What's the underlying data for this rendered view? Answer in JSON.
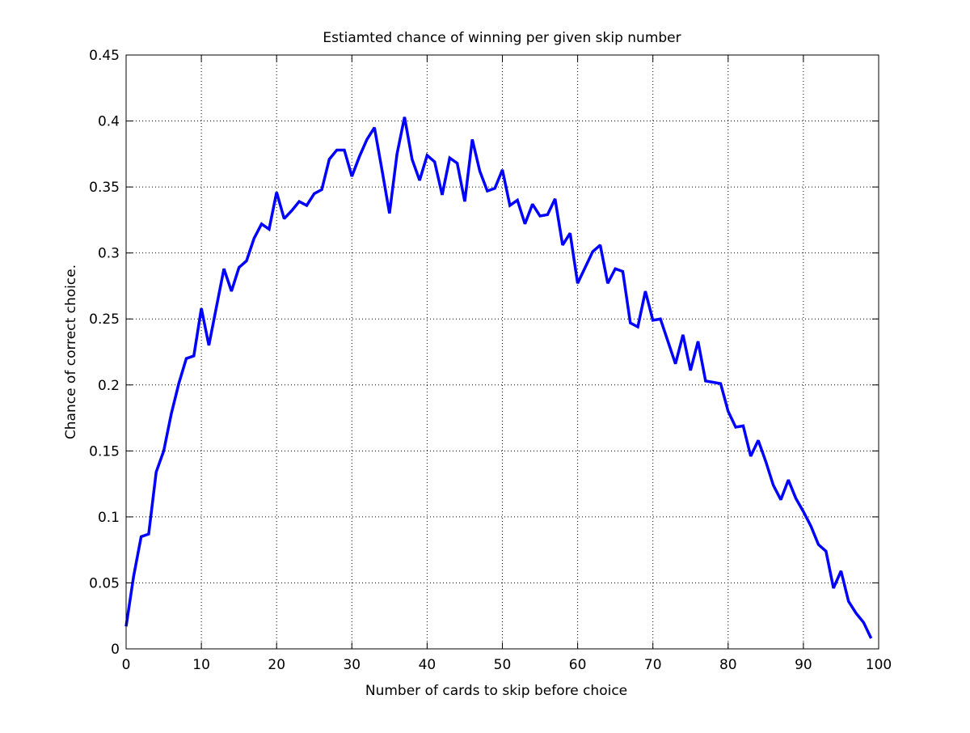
{
  "chart_data": {
    "type": "line",
    "title": "Estiamted chance of winning per given skip number",
    "xlabel": "Number of cards to skip before choice",
    "ylabel": "Chance of correct choice.",
    "xlim": [
      0,
      100
    ],
    "ylim": [
      0,
      0.45
    ],
    "xticks": [
      0,
      10,
      20,
      30,
      40,
      50,
      60,
      70,
      80,
      90,
      100
    ],
    "xtick_labels": [
      "0",
      "10",
      "20",
      "30",
      "40",
      "50",
      "60",
      "70",
      "80",
      "90",
      "100"
    ],
    "yticks": [
      0,
      0.05,
      0.1,
      0.15,
      0.2,
      0.25,
      0.3,
      0.35,
      0.4,
      0.45
    ],
    "ytick_labels": [
      "0",
      "0.05",
      "0.1",
      "0.15",
      "0.2",
      "0.25",
      "0.3",
      "0.35",
      "0.4",
      "0.45"
    ],
    "grid": true,
    "legend": "none",
    "line_color": "#0000ff",
    "series": [
      {
        "x": [
          0,
          1,
          2,
          3,
          4,
          5,
          6,
          7,
          8,
          9,
          10,
          11,
          12,
          13,
          14,
          15,
          16,
          17,
          18,
          19,
          20,
          21,
          22,
          23,
          24,
          25,
          26,
          27,
          28,
          29,
          30,
          31,
          32,
          33,
          34,
          35,
          36,
          37,
          38,
          39,
          40,
          41,
          42,
          43,
          44,
          45,
          46,
          47,
          48,
          49,
          50,
          51,
          52,
          53,
          54,
          55,
          56,
          57,
          58,
          59,
          60,
          61,
          62,
          63,
          64,
          65,
          66,
          67,
          68,
          69,
          70,
          71,
          72,
          73,
          74,
          75,
          76,
          77,
          78,
          79,
          80,
          81,
          82,
          83,
          84,
          85,
          86,
          87,
          88,
          89,
          90,
          91,
          92,
          93,
          94,
          95,
          96,
          97,
          98,
          99
        ],
        "values": [
          0.017,
          0.055,
          0.085,
          0.087,
          0.134,
          0.15,
          0.178,
          0.201,
          0.22,
          0.222,
          0.258,
          0.23,
          0.259,
          0.288,
          0.271,
          0.289,
          0.294,
          0.311,
          0.322,
          0.318,
          0.346,
          0.326,
          0.332,
          0.339,
          0.336,
          0.345,
          0.348,
          0.371,
          0.378,
          0.378,
          0.358,
          0.373,
          0.386,
          0.395,
          0.363,
          0.33,
          0.375,
          0.403,
          0.371,
          0.355,
          0.374,
          0.369,
          0.344,
          0.372,
          0.368,
          0.339,
          0.386,
          0.362,
          0.347,
          0.349,
          0.363,
          0.336,
          0.34,
          0.322,
          0.337,
          0.328,
          0.329,
          0.341,
          0.306,
          0.315,
          0.277,
          0.289,
          0.301,
          0.306,
          0.277,
          0.288,
          0.286,
          0.247,
          0.244,
          0.271,
          0.249,
          0.25,
          0.233,
          0.216,
          0.238,
          0.211,
          0.233,
          0.203,
          0.202,
          0.201,
          0.18,
          0.168,
          0.169,
          0.146,
          0.158,
          0.142,
          0.124,
          0.113,
          0.128,
          0.114,
          0.104,
          0.093,
          0.079,
          0.074,
          0.046,
          0.059,
          0.036,
          0.027,
          0.02,
          0.008
        ]
      }
    ]
  }
}
